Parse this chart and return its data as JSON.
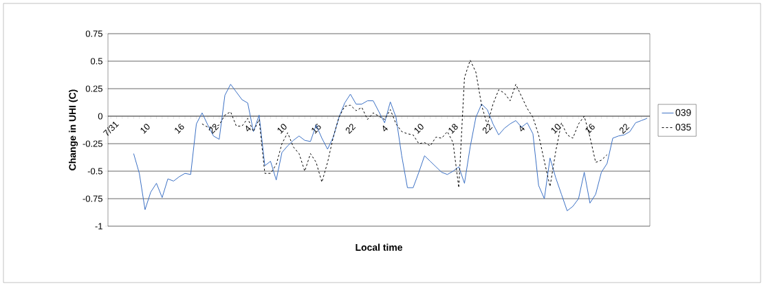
{
  "chart_data": {
    "type": "line",
    "xlabel": "Local time",
    "ylabel": "Change in UHI (C)",
    "categories": [
      "7/31",
      null,
      null,
      null,
      null,
      null,
      "10",
      null,
      null,
      null,
      null,
      null,
      "16",
      null,
      null,
      null,
      null,
      null,
      "22",
      null,
      null,
      null,
      null,
      null,
      "4",
      null,
      null,
      null,
      null,
      null,
      "10",
      null,
      null,
      null,
      null,
      null,
      "16",
      null,
      null,
      null,
      null,
      null,
      "22",
      null,
      null,
      null,
      null,
      null,
      "4",
      null,
      null,
      null,
      null,
      null,
      "10",
      null,
      null,
      null,
      null,
      null,
      "18",
      null,
      null,
      null,
      null,
      null,
      "22",
      null,
      null,
      null,
      null,
      null,
      "4",
      null,
      null,
      null,
      null,
      null,
      "10",
      null,
      null,
      null,
      null,
      null,
      "16",
      null,
      null,
      null,
      null,
      null,
      "22",
      null,
      null,
      null,
      null
    ],
    "series": [
      {
        "name": "039",
        "color": "#3a6fc4",
        "line_style": "solid",
        "values": [
          null,
          null,
          null,
          null,
          -0.34,
          -0.52,
          -0.85,
          -0.69,
          -0.61,
          -0.74,
          -0.57,
          -0.59,
          -0.55,
          -0.52,
          -0.53,
          -0.07,
          0.03,
          -0.08,
          -0.18,
          -0.21,
          0.19,
          0.29,
          0.22,
          0.15,
          0.12,
          -0.14,
          0.01,
          -0.45,
          -0.41,
          -0.58,
          -0.33,
          -0.27,
          -0.22,
          -0.18,
          -0.22,
          -0.23,
          -0.08,
          -0.2,
          -0.3,
          -0.19,
          -0.01,
          0.12,
          0.2,
          0.11,
          0.11,
          0.14,
          0.14,
          0.04,
          -0.06,
          0.13,
          -0.01,
          -0.36,
          -0.65,
          -0.65,
          -0.51,
          -0.36,
          -0.41,
          -0.46,
          -0.51,
          -0.53,
          -0.5,
          -0.46,
          -0.61,
          -0.28,
          -0.01,
          0.11,
          0.06,
          -0.07,
          -0.17,
          -0.11,
          -0.07,
          -0.04,
          -0.1,
          -0.06,
          -0.16,
          -0.63,
          -0.75,
          -0.38,
          -0.56,
          -0.71,
          -0.86,
          -0.82,
          -0.75,
          -0.51,
          -0.79,
          -0.71,
          -0.51,
          -0.43,
          -0.2,
          -0.18,
          -0.17,
          -0.14,
          -0.06,
          -0.04,
          -0.02
        ]
      },
      {
        "name": "035",
        "color": "#000000",
        "line_style": "dashed",
        "values": [
          null,
          null,
          null,
          null,
          null,
          null,
          null,
          null,
          null,
          null,
          null,
          null,
          null,
          null,
          null,
          null,
          -0.07,
          -0.1,
          -0.1,
          -0.08,
          0.01,
          0.04,
          -0.09,
          -0.09,
          -0.02,
          -0.14,
          -0.03,
          -0.52,
          -0.52,
          -0.44,
          -0.25,
          -0.15,
          -0.28,
          -0.34,
          -0.5,
          -0.34,
          -0.42,
          -0.6,
          -0.42,
          -0.19,
          -0.01,
          0.09,
          0.1,
          0.05,
          0.08,
          -0.03,
          0.03,
          0,
          -0.03,
          0.06,
          -0.07,
          -0.14,
          -0.16,
          -0.17,
          -0.25,
          -0.24,
          -0.27,
          -0.19,
          -0.2,
          -0.14,
          -0.24,
          -0.65,
          0.35,
          0.51,
          0.4,
          0.1,
          -0.08,
          0.11,
          0.24,
          0.21,
          0.14,
          0.29,
          0.18,
          0.07,
          -0.01,
          -0.17,
          -0.41,
          -0.64,
          -0.32,
          -0.06,
          -0.17,
          -0.2,
          -0.07,
          0,
          -0.19,
          -0.42,
          -0.4,
          -0.35,
          null,
          null,
          null,
          null,
          null,
          null,
          null
        ]
      }
    ],
    "ylim": [
      -1,
      0.75
    ],
    "yticks": [
      -1,
      -0.75,
      -0.5,
      -0.25,
      0,
      0.25,
      0.5,
      0.75
    ],
    "grid": "y",
    "legend": "right",
    "marker": "none"
  }
}
